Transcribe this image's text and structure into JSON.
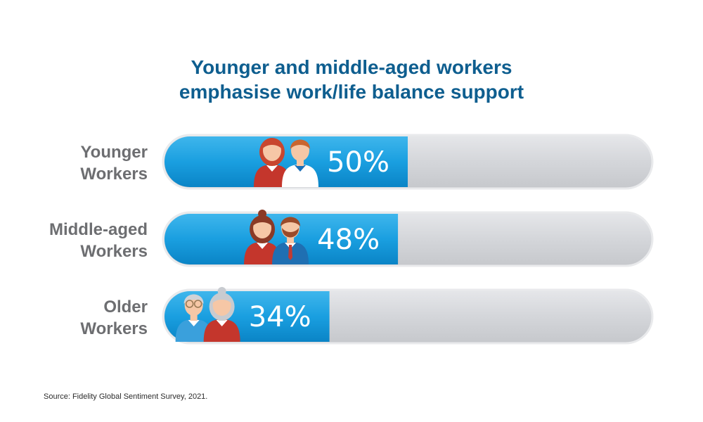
{
  "chart_data": {
    "type": "bar",
    "orientation": "horizontal",
    "title_lines": [
      "Younger and middle-aged workers",
      "emphasise work/life balance support"
    ],
    "categories": [
      {
        "lines": [
          "Younger",
          "Workers"
        ],
        "value": 50,
        "label": "50%",
        "icon": "young-couple-icon"
      },
      {
        "lines": [
          "Middle-aged",
          "Workers"
        ],
        "value": 48,
        "label": "48%",
        "icon": "middle-aged-couple-icon"
      },
      {
        "lines": [
          "Older",
          "Workers"
        ],
        "value": 34,
        "label": "34%",
        "icon": "older-couple-icon"
      }
    ],
    "xlim": [
      0,
      100
    ],
    "grid": false,
    "legend": "none"
  },
  "colors": {
    "title": "#0e5e8f",
    "bar_fill": "#1a9fe0",
    "track_fill": "#d6d8dc",
    "category_text": "#6d6e71",
    "value_text": "#ffffff"
  },
  "source": "Source: Fidelity Global Sentiment Survey, 2021."
}
